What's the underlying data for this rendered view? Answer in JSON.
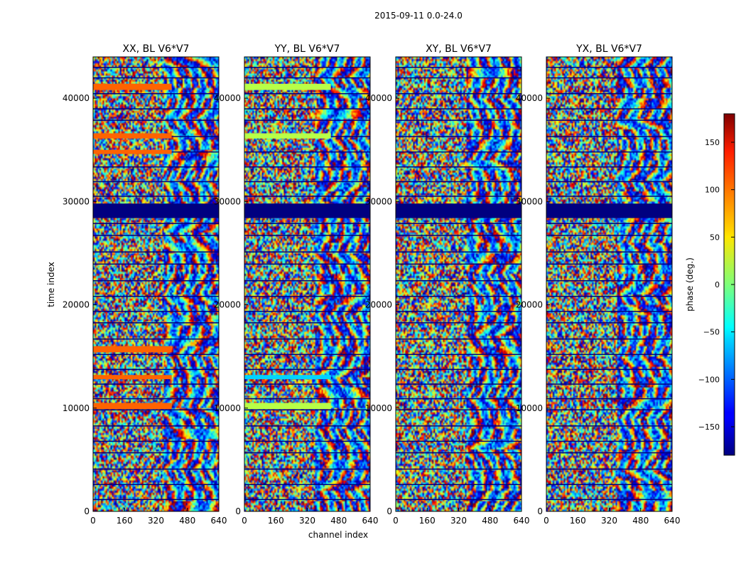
{
  "suptitle": "2015-09-11 0.0-24.0",
  "chart_data": {
    "type": "heatmap",
    "xlabel": "channel index",
    "ylabel": "time index",
    "xlim": [
      0,
      640
    ],
    "ylim": [
      0,
      44000
    ],
    "xticks": [
      0,
      160,
      320,
      480,
      640
    ],
    "yticks": [
      0,
      10000,
      20000,
      30000,
      40000
    ],
    "colormap": "jet",
    "colorbar": {
      "label": "phase (deg.)",
      "range": [
        -180,
        180
      ],
      "ticks": [
        -150,
        -100,
        -50,
        0,
        50,
        100,
        150
      ],
      "tick_labels": [
        "−150",
        "−100",
        "−50",
        "0",
        "50",
        "100",
        "150"
      ],
      "position": "right"
    },
    "panels": [
      {
        "title": "XX, BL V6*V7",
        "polarization": "XX",
        "baseline": "V6*V7"
      },
      {
        "title": "YY, BL V6*V7",
        "polarization": "YY",
        "baseline": "V6*V7"
      },
      {
        "title": "XY, BL V6*V7",
        "polarization": "XY",
        "baseline": "V6*V7"
      },
      {
        "title": "YX, BL V6*V7",
        "polarization": "YX",
        "baseline": "V6*V7"
      }
    ],
    "flagged_band": {
      "time_range": [
        28400,
        29800
      ],
      "phase": -180
    },
    "uniform_bands": [
      {
        "panel": "XX",
        "time_range": [
          40800,
          41400
        ],
        "channel_range": [
          0,
          400
        ],
        "phase": 100
      },
      {
        "panel": "XX",
        "time_range": [
          36100,
          36600
        ],
        "channel_range": [
          0,
          400
        ],
        "phase": 100
      },
      {
        "panel": "XX",
        "time_range": [
          34600,
          35000
        ],
        "channel_range": [
          0,
          400
        ],
        "phase": 100
      },
      {
        "panel": "XX",
        "time_range": [
          15400,
          16000
        ],
        "channel_range": [
          0,
          400
        ],
        "phase": 100
      },
      {
        "panel": "XX",
        "time_range": [
          12800,
          13200
        ],
        "channel_range": [
          0,
          400
        ],
        "phase": 100
      },
      {
        "panel": "XX",
        "time_range": [
          9900,
          10500
        ],
        "channel_range": [
          0,
          400
        ],
        "phase": 100
      },
      {
        "panel": "YY",
        "time_range": [
          40800,
          41400
        ],
        "channel_range": [
          0,
          440
        ],
        "phase": 20
      },
      {
        "panel": "YY",
        "time_range": [
          36100,
          36600
        ],
        "channel_range": [
          0,
          440
        ],
        "phase": 20
      },
      {
        "panel": "YY",
        "time_range": [
          9900,
          10500
        ],
        "channel_range": [
          0,
          440
        ],
        "phase": 20
      },
      {
        "panel": "YY",
        "time_range": [
          12800,
          13200
        ],
        "channel_range": [
          0,
          440
        ],
        "phase": -60
      }
    ]
  }
}
